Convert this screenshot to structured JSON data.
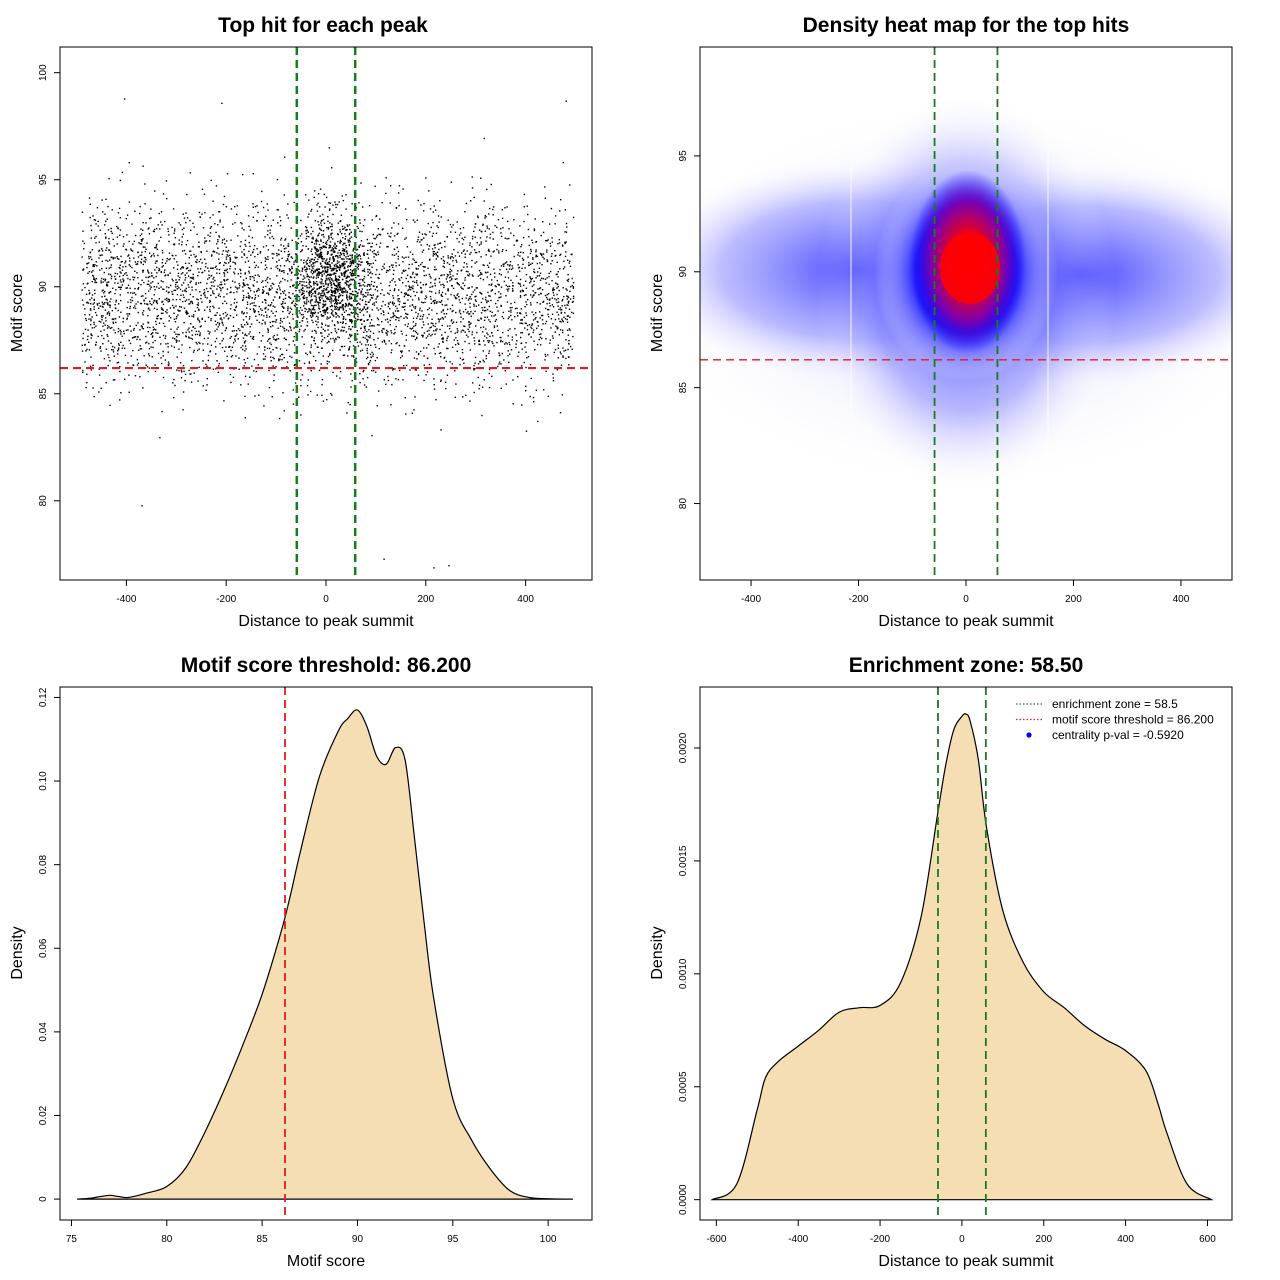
{
  "chart_data": [
    {
      "id": "scatter",
      "type": "scatter",
      "title": "Top hit for each peak",
      "xlabel": "Distance to peak summit",
      "ylabel": "Motif score",
      "xlim": [
        -533,
        533
      ],
      "ylim": [
        76.3,
        101.2
      ],
      "xticks": [
        -400,
        -200,
        0,
        200,
        400
      ],
      "yticks": [
        80,
        85,
        90,
        95,
        100
      ],
      "point_color": "#000000",
      "points_summary": {
        "count_approx": 5000,
        "x_range": [
          -490,
          495
        ],
        "y_range": [
          76.9,
          98.8
        ],
        "y_core_range": [
          80,
          95
        ],
        "dense_center": [
          10,
          90.5
        ]
      },
      "hlines": [
        {
          "y": 86.2,
          "color": "#e41a1c",
          "style": "dashed"
        }
      ],
      "vlines": [
        {
          "x": -58.5,
          "color": "#1b7a1b",
          "style": "dashed"
        },
        {
          "x": 58.5,
          "color": "#1b7a1b",
          "style": "dashed"
        }
      ]
    },
    {
      "id": "heatmap",
      "type": "heatmap",
      "title": "Density heat map for the top hits",
      "xlabel": "Distance to peak summit",
      "ylabel": "Motif score",
      "xlim": [
        -495,
        495
      ],
      "ylim": [
        76.7,
        99.7
      ],
      "xticks": [
        -400,
        -200,
        0,
        200,
        400
      ],
      "yticks": [
        80,
        85,
        90,
        95
      ],
      "color_scale": [
        "#ffffff",
        "#0000ff",
        "#ff0000"
      ],
      "peak": [
        10,
        90
      ],
      "hlines": [
        {
          "y": 86.2,
          "color": "#e41a1c",
          "style": "dashed"
        }
      ],
      "vlines": [
        {
          "x": -58.5,
          "color": "#1b7a1b",
          "style": "dashed"
        },
        {
          "x": 58.5,
          "color": "#1b7a1b",
          "style": "dashed"
        }
      ]
    },
    {
      "id": "score_density",
      "type": "area",
      "title": "Motif score threshold: 86.200",
      "xlabel": "Motif score",
      "ylabel": "Density",
      "xlim": [
        74.4,
        102.3
      ],
      "ylim": [
        -0.005,
        0.1225
      ],
      "xticks": [
        75,
        80,
        85,
        90,
        95,
        100
      ],
      "yticks": [
        0.0,
        0.02,
        0.04,
        0.06,
        0.08,
        0.1,
        0.12
      ],
      "fill_color": "#f5deb3",
      "x": [
        75.3,
        76,
        76.5,
        77,
        77.5,
        78,
        79,
        80,
        81,
        82,
        83,
        84,
        85,
        86,
        86.5,
        87,
        88,
        89,
        89.5,
        90,
        90.5,
        91,
        91.5,
        92,
        92.5,
        93,
        93.5,
        94,
        95,
        96,
        97,
        98,
        99,
        100,
        101.3
      ],
      "y": [
        0.0,
        0.0002,
        0.0006,
        0.0009,
        0.0006,
        0.0004,
        0.0015,
        0.003,
        0.0075,
        0.016,
        0.026,
        0.037,
        0.049,
        0.064,
        0.073,
        0.083,
        0.101,
        0.112,
        0.115,
        0.117,
        0.113,
        0.106,
        0.104,
        0.108,
        0.105,
        0.086,
        0.066,
        0.048,
        0.024,
        0.014,
        0.007,
        0.002,
        0.0004,
        0.0001,
        0.0
      ],
      "vlines": [
        {
          "x": 86.2,
          "color": "#e41a1c",
          "style": "dashed"
        }
      ]
    },
    {
      "id": "distance_density",
      "type": "area",
      "title": "Enrichment zone: 58.50",
      "xlabel": "Distance to peak summit",
      "ylabel": "Density",
      "xlim": [
        -640,
        660
      ],
      "ylim": [
        -9e-05,
        0.00227
      ],
      "xticks": [
        -600,
        -400,
        -200,
        0,
        200,
        400,
        600
      ],
      "yticks": [
        0.0,
        0.0005,
        0.001,
        0.0015,
        0.002
      ],
      "ytick_labels": [
        "0.0000",
        "0.0005",
        "0.0010",
        "0.0015",
        "0.0020"
      ],
      "fill_color": "#f5deb3",
      "x": [
        -610,
        -550,
        -500,
        -480,
        -450,
        -400,
        -350,
        -300,
        -250,
        -200,
        -150,
        -100,
        -60,
        -40,
        -20,
        0,
        10,
        20,
        40,
        60,
        100,
        150,
        200,
        250,
        300,
        350,
        400,
        450,
        480,
        500,
        550,
        610
      ],
      "y": [
        0.0,
        7e-05,
        0.0004,
        0.00054,
        0.00061,
        0.00068,
        0.00075,
        0.00083,
        0.00085,
        0.00086,
        0.00096,
        0.00125,
        0.0017,
        0.00192,
        0.00208,
        0.00214,
        0.00215,
        0.00212,
        0.00195,
        0.00165,
        0.00128,
        0.00105,
        0.00092,
        0.00085,
        0.00077,
        0.00071,
        0.00066,
        0.00057,
        0.00042,
        0.0003,
        7e-05,
        0.0
      ],
      "vlines": [
        {
          "x": -58.5,
          "color": "#1b7a1b",
          "style": "dashed"
        },
        {
          "x": 58.5,
          "color": "#1b7a1b",
          "style": "dashed"
        }
      ],
      "legend": {
        "placement": "top-right",
        "items": [
          {
            "label": "enrichment zone = 58.5",
            "color": "#1b7a1b",
            "kind": "dotted-line"
          },
          {
            "label": "motif score threshold = 86.200",
            "color": "#e41a1c",
            "kind": "dotted-line"
          },
          {
            "label": "centrality p-val = -0.5920",
            "color": "#0000ff",
            "kind": "point"
          }
        ]
      }
    }
  ]
}
